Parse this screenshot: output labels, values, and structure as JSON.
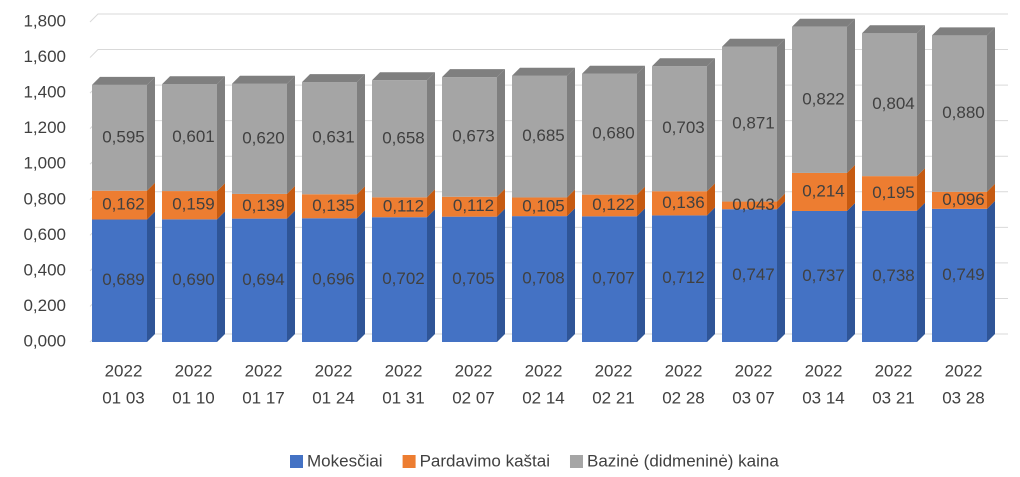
{
  "chart_data": {
    "type": "bar",
    "stacked": true,
    "categories": [
      [
        "2022",
        "01 03"
      ],
      [
        "2022",
        "01 10"
      ],
      [
        "2022",
        "01 17"
      ],
      [
        "2022",
        "01 24"
      ],
      [
        "2022",
        "01 31"
      ],
      [
        "2022",
        "02 07"
      ],
      [
        "2022",
        "02 14"
      ],
      [
        "2022",
        "02 21"
      ],
      [
        "2022",
        "02 28"
      ],
      [
        "2022",
        "03 07"
      ],
      [
        "2022",
        "03 14"
      ],
      [
        "2022",
        "03 21"
      ],
      [
        "2022",
        "03 28"
      ]
    ],
    "series": [
      {
        "name": "Mokesčiai",
        "color": "#4472c4",
        "side": "#2f5597",
        "values": [
          0.689,
          0.69,
          0.694,
          0.696,
          0.702,
          0.705,
          0.708,
          0.707,
          0.712,
          0.747,
          0.737,
          0.738,
          0.749
        ],
        "value_labels": [
          "0,689",
          "0,690",
          "0,694",
          "0,696",
          "0,702",
          "0,705",
          "0,708",
          "0,707",
          "0,712",
          "0,747",
          "0,737",
          "0,738",
          "0,749"
        ]
      },
      {
        "name": "Pardavimo kaštai",
        "color": "#ed7d31",
        "side": "#c55a11",
        "values": [
          0.162,
          0.159,
          0.139,
          0.135,
          0.112,
          0.112,
          0.105,
          0.122,
          0.136,
          0.043,
          0.214,
          0.195,
          0.096
        ],
        "value_labels": [
          "0,162",
          "0,159",
          "0,139",
          "0,135",
          "0,112",
          "0,112",
          "0,105",
          "0,122",
          "0,136",
          "0,043",
          "0,214",
          "0,195",
          "0,096"
        ]
      },
      {
        "name": "Bazinė (didmeninė) kaina",
        "color": "#a5a5a5",
        "side": "#7f7f7f",
        "values": [
          0.595,
          0.601,
          0.62,
          0.631,
          0.658,
          0.673,
          0.685,
          0.68,
          0.703,
          0.871,
          0.822,
          0.804,
          0.88
        ],
        "value_labels": [
          "0,595",
          "0,601",
          "0,620",
          "0,631",
          "0,658",
          "0,673",
          "0,685",
          "0,680",
          "0,703",
          "0,871",
          "0,822",
          "0,804",
          "0,880"
        ]
      }
    ],
    "ylim": [
      0,
      1.8
    ],
    "yticks": [
      {
        "value": 0,
        "label": "0,000"
      },
      {
        "value": 0.2,
        "label": "0,200"
      },
      {
        "value": 0.4,
        "label": "0,400"
      },
      {
        "value": 0.6,
        "label": "0,600"
      },
      {
        "value": 0.8,
        "label": "0,800"
      },
      {
        "value": 1,
        "label": "1,000"
      },
      {
        "value": 1.2,
        "label": "1,200"
      },
      {
        "value": 1.4,
        "label": "1,400"
      },
      {
        "value": 1.6,
        "label": "1,600"
      },
      {
        "value": 1.8,
        "label": "1,800"
      }
    ],
    "grid": true
  }
}
